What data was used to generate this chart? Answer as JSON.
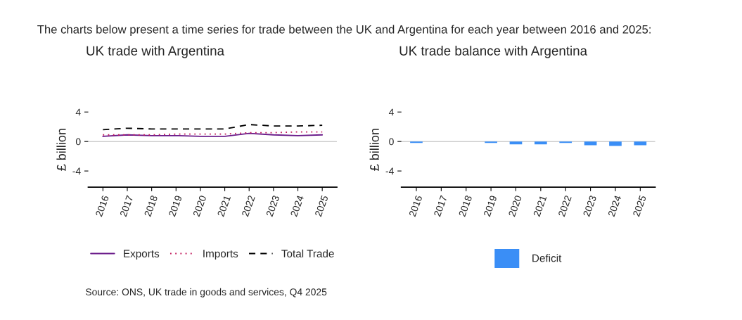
{
  "chart_data": [
    {
      "type": "line",
      "title": "UK trade with Argentina",
      "ylabel": "£ billion",
      "categories": [
        "2016",
        "2017",
        "2018",
        "2019",
        "2020",
        "2021",
        "2022",
        "2023",
        "2024",
        "2025"
      ],
      "series": [
        {
          "name": "Exports",
          "color": "#6a1b8a",
          "line_style": "solid",
          "values": [
            0.7,
            0.9,
            0.8,
            0.8,
            0.7,
            0.7,
            1.1,
            0.9,
            0.8,
            0.9
          ]
        },
        {
          "name": "Imports",
          "color": "#c2185b",
          "line_style": "dotted",
          "values": [
            0.9,
            0.9,
            0.9,
            1.0,
            1.0,
            1.0,
            1.2,
            1.2,
            1.3,
            1.3
          ]
        },
        {
          "name": "Total Trade",
          "color": "#000000",
          "line_style": "dashed",
          "values": [
            1.6,
            1.8,
            1.7,
            1.7,
            1.7,
            1.7,
            2.3,
            2.1,
            2.1,
            2.2
          ]
        }
      ],
      "ylim": [
        -6.2,
        4
      ],
      "yticks": [
        -4,
        0,
        4
      ],
      "ref_lines": [
        {
          "axis": "y",
          "value": 0,
          "color": "#bbbbbb"
        }
      ],
      "grid": false,
      "legend": "bottom",
      "annotations": [
        "The charts below present a time series for trade between the UK and Argentina for each year between 2016 and 2025:",
        "Source: ONS, UK trade in goods and services, Q4 2025"
      ]
    },
    {
      "type": "bar",
      "title": "UK trade balance with Argentina",
      "ylabel": "£ billion",
      "categories": [
        "2016",
        "2017",
        "2018",
        "2019",
        "2020",
        "2021",
        "2022",
        "2023",
        "2024",
        "2025"
      ],
      "series": [
        {
          "name": "Deficit",
          "color": "#3a8ef6",
          "values": [
            -0.2,
            null,
            null,
            -0.2,
            -0.4,
            -0.4,
            -0.2,
            -0.5,
            -0.6,
            -0.5
          ]
        }
      ],
      "ylim": [
        -6.2,
        4
      ],
      "yticks": [
        -4,
        0,
        4
      ],
      "ref_lines": [
        {
          "axis": "y",
          "value": 0,
          "color": "#bbbbbb"
        }
      ],
      "grid": false,
      "legend": "bottom"
    }
  ]
}
